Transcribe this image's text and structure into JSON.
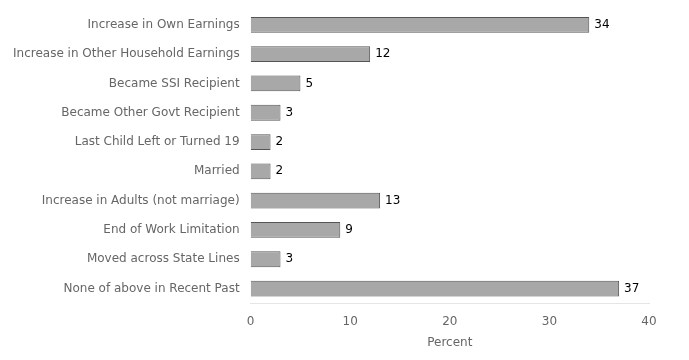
{
  "chart_data": {
    "type": "bar",
    "orientation": "horizontal",
    "categories": [
      "Increase in Own Earnings",
      "Increase in Other Household Earnings",
      "Became SSI Recipient",
      "Became Other Govt Recipient",
      "Last Child Left or Turned 19",
      "Married",
      "Increase in Adults (not marriage)",
      "End of Work Limitation",
      "Moved across State Lines",
      "None of above in Recent Past"
    ],
    "values": [
      34,
      12,
      5,
      3,
      2,
      2,
      13,
      9,
      3,
      37
    ],
    "color": "#a8a8a8",
    "xlabel": "Percent",
    "xlim": [
      0,
      40
    ],
    "xticks": [
      0,
      10,
      20,
      30,
      40
    ],
    "data_labels": true,
    "grid": false
  }
}
